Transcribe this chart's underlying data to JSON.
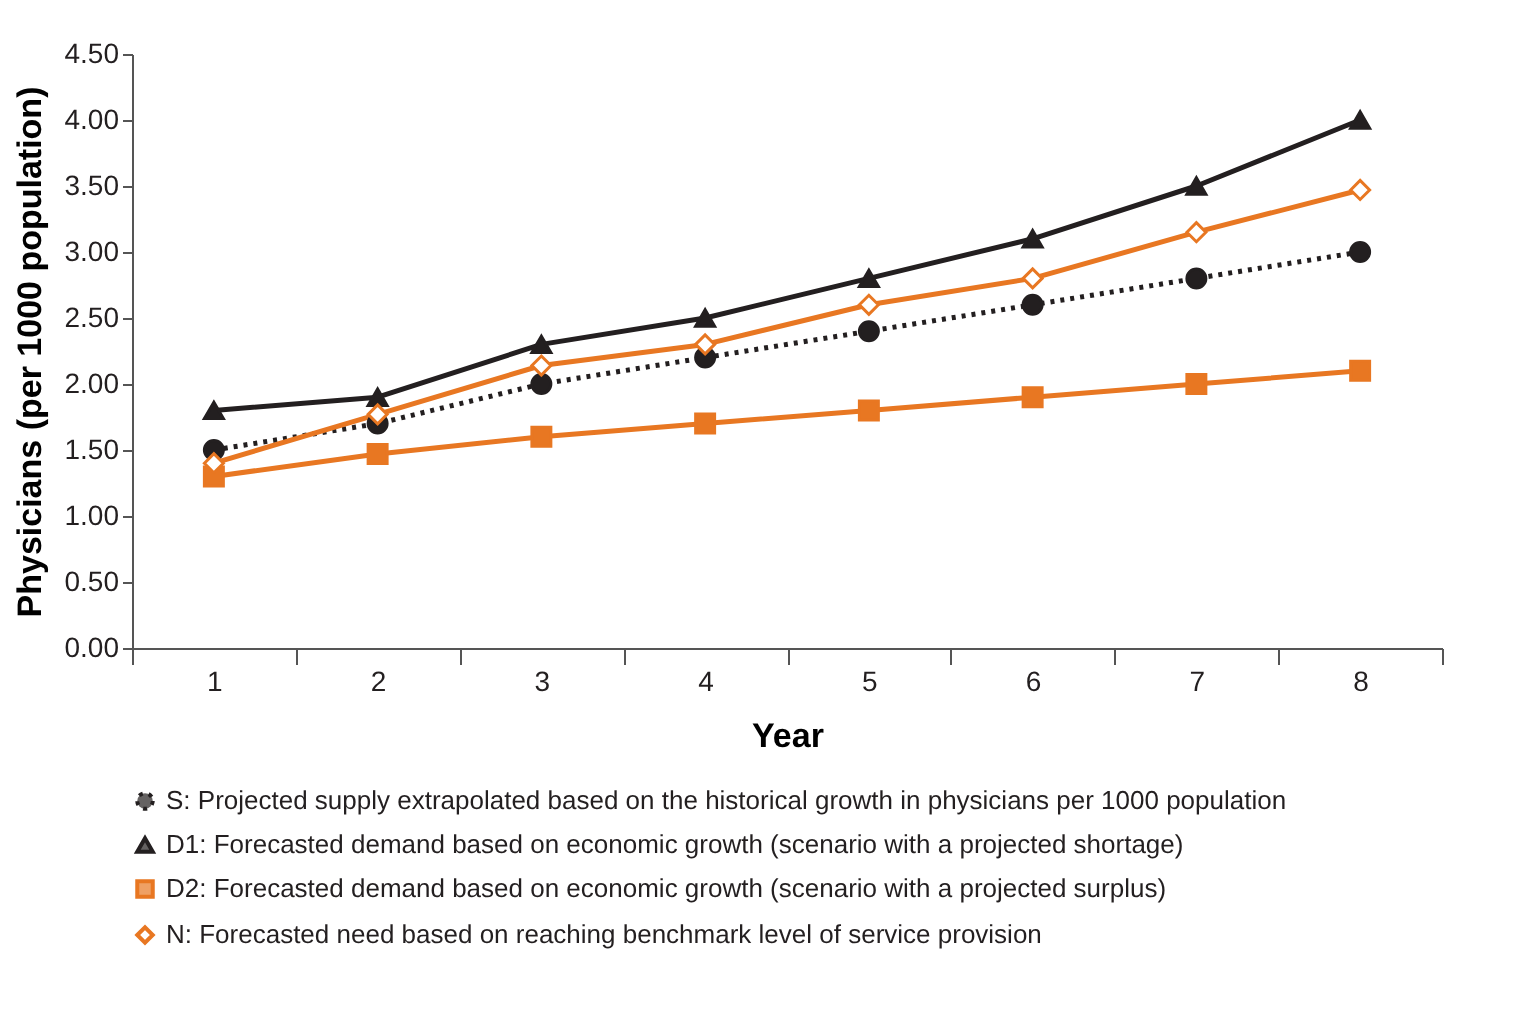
{
  "chart_data": {
    "type": "line",
    "xlabel": "Year",
    "ylabel": "Physicians (per 1000 population)",
    "categories": [
      "1",
      "2",
      "3",
      "4",
      "5",
      "6",
      "7",
      "8"
    ],
    "series": [
      {
        "name": "S: Projected supply extrapolated based on the historical growth in physicians per 1000 population",
        "color": "#231f20",
        "marker": "circle",
        "line_style": "dotted",
        "values": [
          1.5,
          1.7,
          2.0,
          2.2,
          2.4,
          2.6,
          2.8,
          3.0
        ]
      },
      {
        "name": "D1: Forecasted demand based on economic growth (scenario with a projected shortage)",
        "color": "#231f20",
        "marker": "triangle",
        "line_style": "solid",
        "values": [
          1.8,
          1.9,
          2.3,
          2.5,
          2.8,
          3.1,
          3.5,
          4.0
        ]
      },
      {
        "name": "D2: Forecasted demand based on economic growth (scenario with a projected surplus)",
        "color": "#e87722",
        "marker": "square",
        "line_style": "solid",
        "values": [
          1.3,
          1.47,
          1.6,
          1.7,
          1.8,
          1.9,
          2.0,
          2.1
        ]
      },
      {
        "name": "N: Forecasted need based on reaching benchmark level of service provision",
        "color": "#e87722",
        "marker": "diamond",
        "line_style": "solid",
        "values": [
          1.4,
          1.77,
          2.14,
          2.3,
          2.6,
          2.8,
          3.15,
          3.47
        ]
      }
    ],
    "ylim": [
      0,
      4.5
    ],
    "yticks": [
      {
        "value": 0,
        "label": "0.00"
      },
      {
        "value": 0.5,
        "label": "0.50"
      },
      {
        "value": 1,
        "label": "1.00"
      },
      {
        "value": 1.5,
        "label": "1.50"
      },
      {
        "value": 2,
        "label": "2.00"
      },
      {
        "value": 2.5,
        "label": "2.50"
      },
      {
        "value": 3,
        "label": "3.00"
      },
      {
        "value": 3.5,
        "label": "3.50"
      },
      {
        "value": 4,
        "label": "4.00"
      },
      {
        "value": 4.5,
        "label": "4.50"
      }
    ],
    "grid": false,
    "legend": "bottom"
  }
}
